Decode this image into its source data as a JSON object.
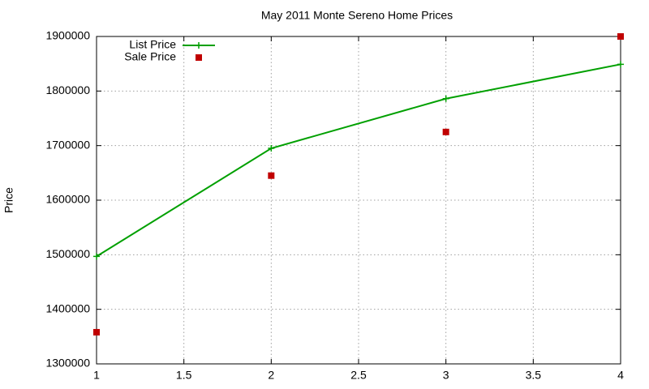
{
  "chart_data": {
    "type": "line",
    "title": "May 2011 Monte Sereno Home Prices",
    "y_label": "Price",
    "x": [
      1,
      2,
      3,
      4
    ],
    "series": [
      {
        "name": "List Price",
        "color": "#00a000",
        "mode": "lines+markers",
        "values": [
          1497000,
          1695000,
          1786000,
          1849000
        ]
      },
      {
        "name": "Sale Price",
        "color": "#c00000",
        "mode": "markers",
        "values": [
          1358000,
          1645000,
          1725000,
          1900000
        ]
      }
    ],
    "xlim": [
      1,
      4
    ],
    "xticks": [
      1,
      1.5,
      2,
      2.5,
      3,
      3.5,
      4
    ],
    "ylim": [
      1300000,
      1900000
    ],
    "yticks": [
      1300000,
      1400000,
      1500000,
      1600000,
      1700000,
      1800000,
      1900000
    ],
    "grid": true,
    "legend": "top-left"
  }
}
